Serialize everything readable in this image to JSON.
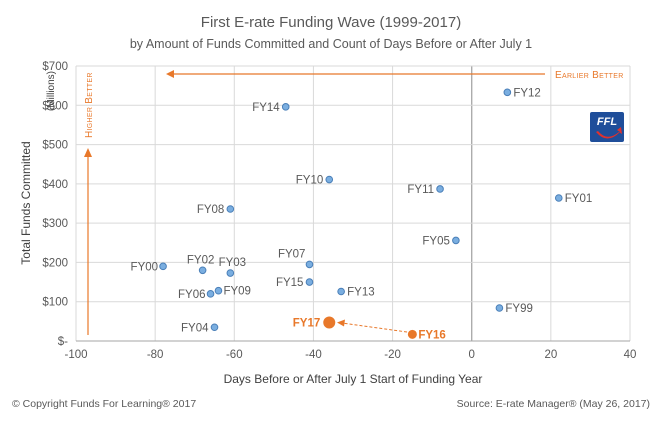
{
  "chart_data": {
    "type": "scatter",
    "title": "First E-rate Funding Wave  (1999-2017)",
    "subtitle": "by Amount of Funds Committed and Count of Days Before or After July 1",
    "xlabel": "Days Before or After July 1 Start of Funding Year",
    "ylabel": "Total Funds Committed",
    "ylabel_unit": "(Millions)",
    "xlim": [
      -100,
      40
    ],
    "ylim": [
      0,
      700
    ],
    "x_ticks": [
      "-100",
      "-80",
      "-60",
      "-40",
      "-20",
      "0",
      "20",
      "40"
    ],
    "y_ticks": [
      "$-",
      "$100",
      "$200",
      "$300",
      "$400",
      "$500",
      "$600",
      "$700"
    ],
    "grid": true,
    "points": [
      {
        "label": "FY14",
        "x": -47,
        "y": 596,
        "highlight": false
      },
      {
        "label": "FY12",
        "x": 9,
        "y": 633,
        "highlight": false
      },
      {
        "label": "FY01",
        "x": 22,
        "y": 364,
        "highlight": false
      },
      {
        "label": "FY10",
        "x": -36,
        "y": 411,
        "highlight": false
      },
      {
        "label": "FY11",
        "x": -8,
        "y": 387,
        "highlight": false
      },
      {
        "label": "FY08",
        "x": -61,
        "y": 336,
        "highlight": false
      },
      {
        "label": "FY05",
        "x": -4,
        "y": 256,
        "highlight": false
      },
      {
        "label": "FY00",
        "x": -78,
        "y": 190,
        "highlight": false
      },
      {
        "label": "FY02",
        "x": -68,
        "y": 180,
        "highlight": false
      },
      {
        "label": "FY03",
        "x": -61,
        "y": 173,
        "highlight": false
      },
      {
        "label": "FY07",
        "x": -41,
        "y": 195,
        "highlight": false
      },
      {
        "label": "FY15",
        "x": -41,
        "y": 150,
        "highlight": false
      },
      {
        "label": "FY13",
        "x": -33,
        "y": 126,
        "highlight": false
      },
      {
        "label": "FY06",
        "x": -66,
        "y": 120,
        "highlight": false
      },
      {
        "label": "FY09",
        "x": -64,
        "y": 128,
        "highlight": false
      },
      {
        "label": "FY99",
        "x": 7,
        "y": 84,
        "highlight": false
      },
      {
        "label": "FY04",
        "x": -65,
        "y": 35,
        "highlight": false
      },
      {
        "label": "FY17",
        "x": -36,
        "y": 47,
        "highlight": true
      },
      {
        "label": "FY16",
        "x": -15,
        "y": 17,
        "highlight": true
      }
    ],
    "annotations": {
      "earlier_better": "Earlier Better",
      "higher_better": "Higher Better"
    },
    "colors": {
      "point": "#7aaee0",
      "point_stroke": "#4a7fb8",
      "highlight": "#e8782a"
    }
  },
  "logo": {
    "text": "FFL"
  },
  "footer": {
    "left": "© Copyright Funds For Learning® 2017",
    "right": "Source: E-rate Manager® (May 26, 2017)"
  }
}
